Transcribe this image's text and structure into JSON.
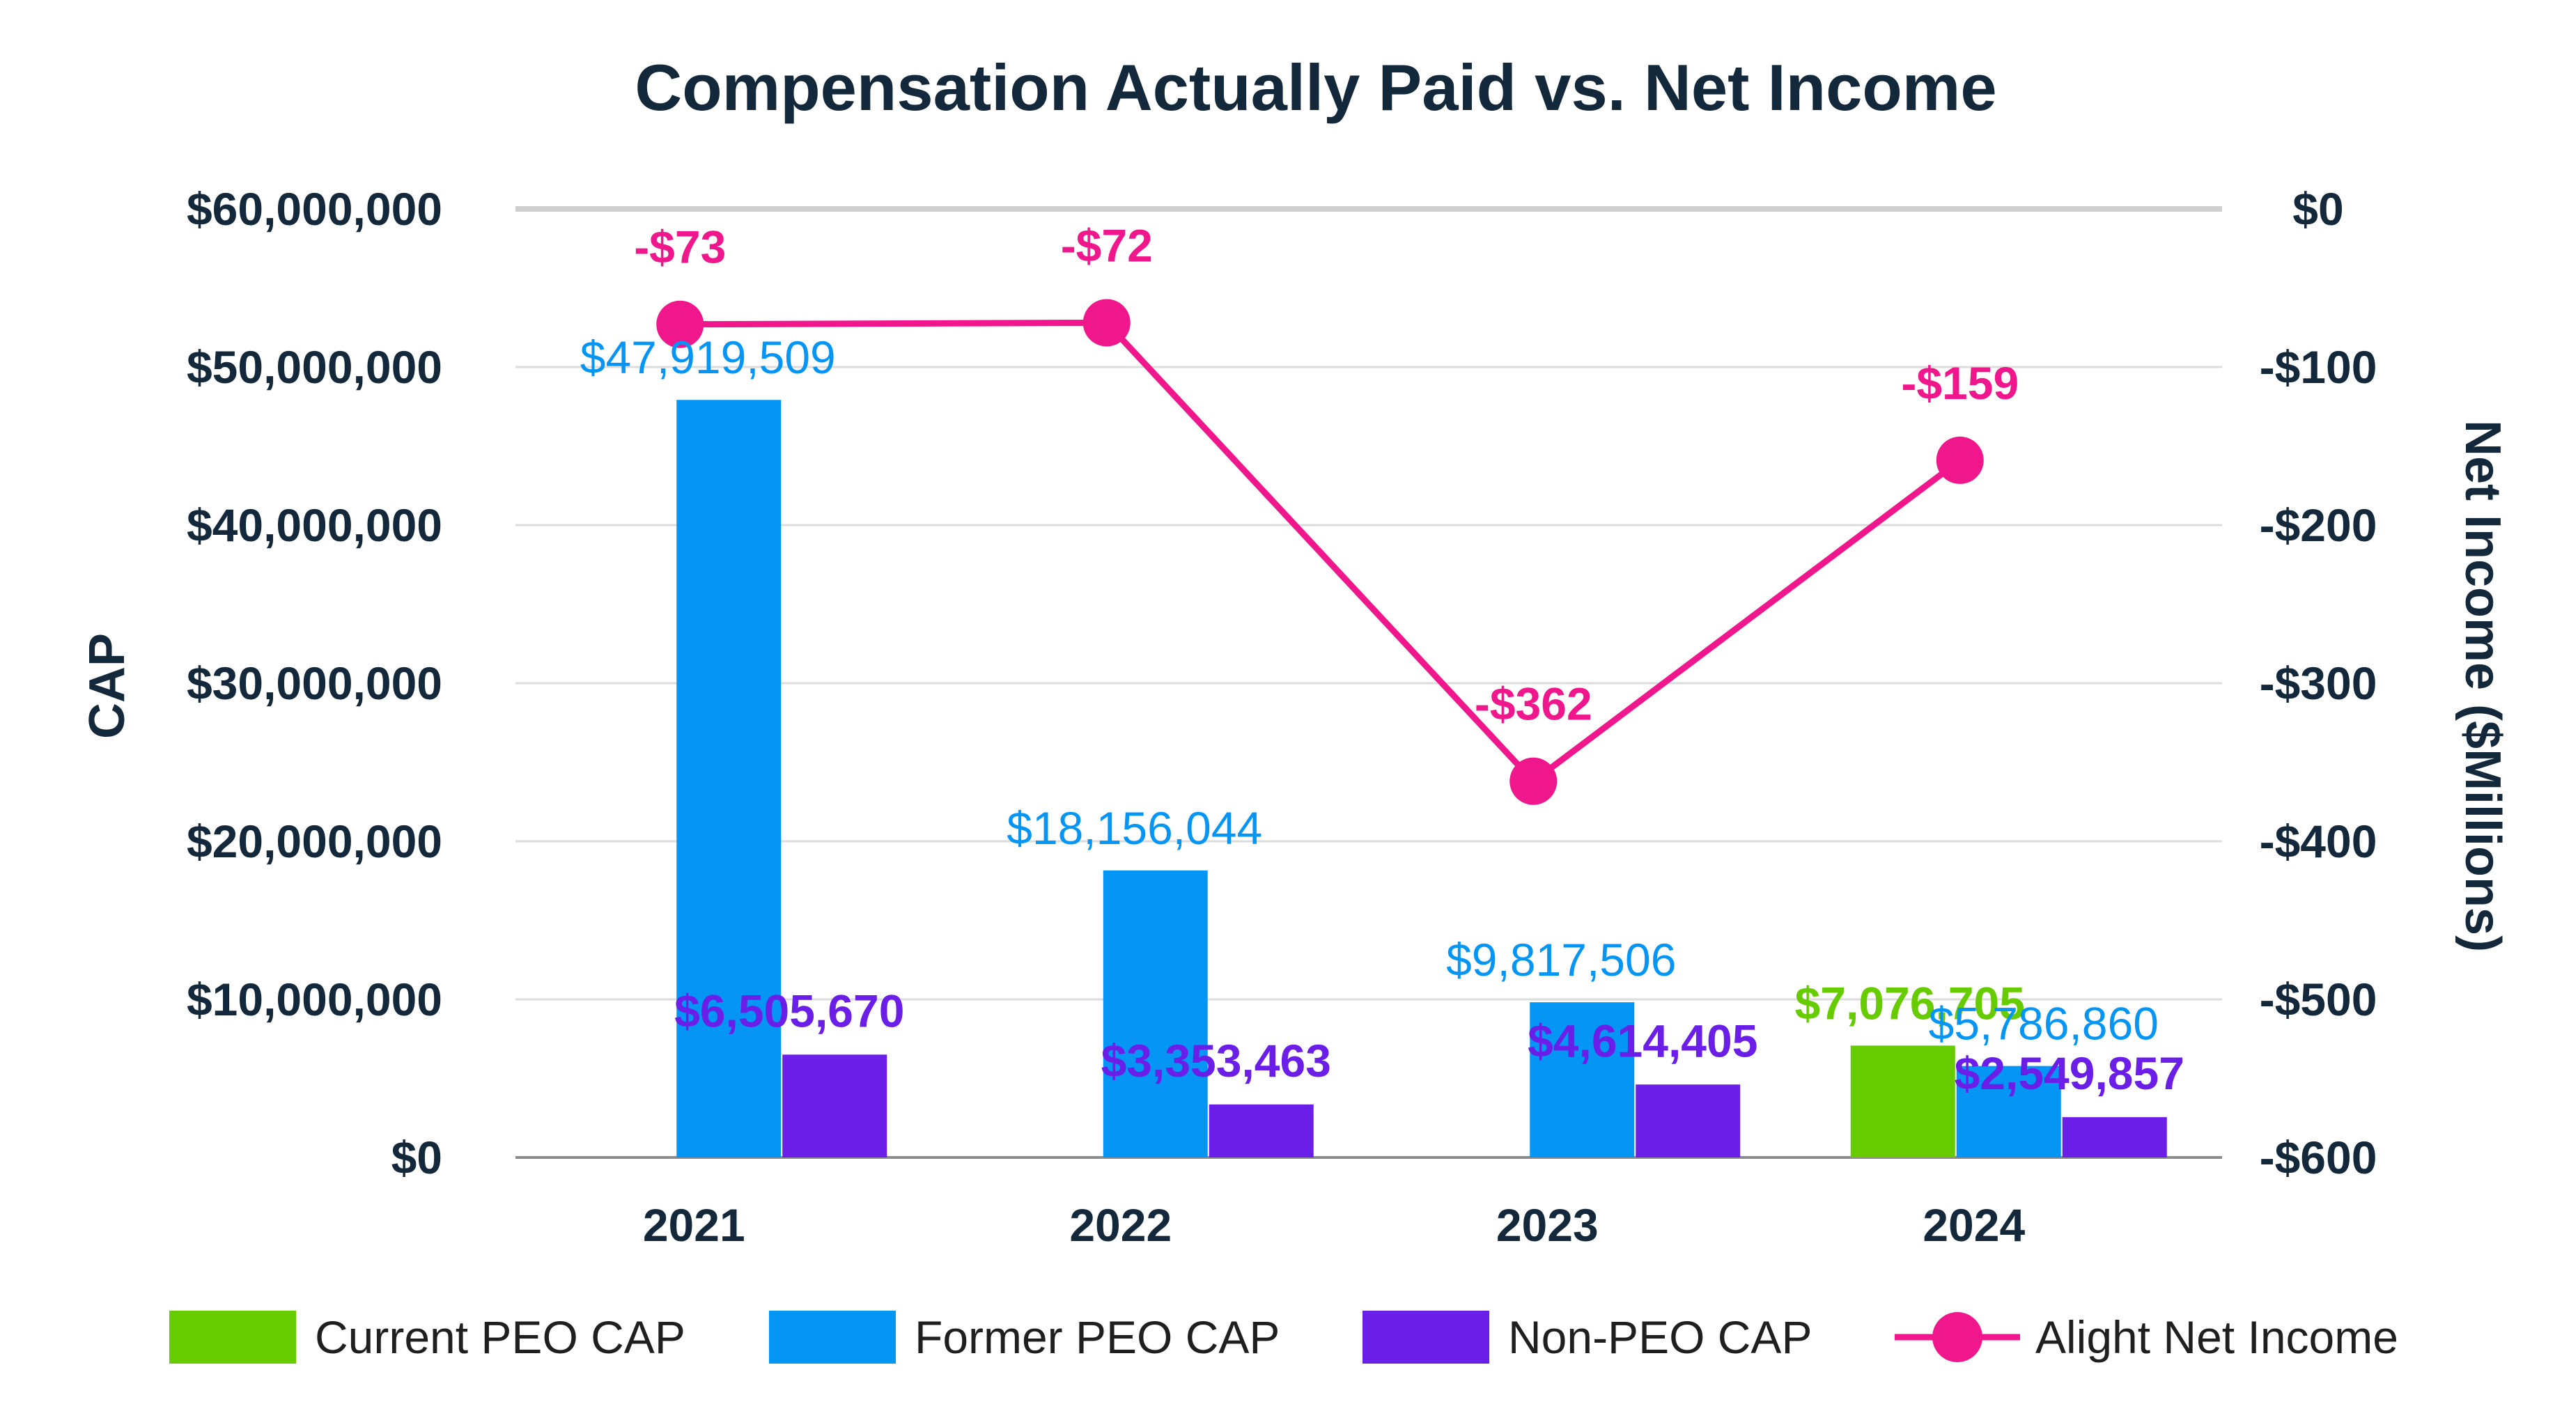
{
  "chart_data": {
    "type": "bar+line",
    "title": "Compensation Actually Paid vs. Net Income",
    "categories": [
      "2021",
      "2022",
      "2023",
      "2024"
    ],
    "ylabel_left": "CAP",
    "ylabel_right": "Net Income ($Millions)",
    "ylim_left": [
      0,
      60000000
    ],
    "ylim_right": [
      -600,
      0
    ],
    "left_ticks": [
      {
        "value": 0,
        "label": "$0"
      },
      {
        "value": 10000000,
        "label": "$10,000,000"
      },
      {
        "value": 20000000,
        "label": "$20,000,000"
      },
      {
        "value": 30000000,
        "label": "$30,000,000"
      },
      {
        "value": 40000000,
        "label": "$40,000,000"
      },
      {
        "value": 50000000,
        "label": "$50,000,000"
      },
      {
        "value": 60000000,
        "label": "$60,000,000"
      }
    ],
    "right_ticks": [
      {
        "value": 0,
        "label": "$0"
      },
      {
        "value": -100,
        "label": "-$100"
      },
      {
        "value": -200,
        "label": "-$200"
      },
      {
        "value": -300,
        "label": "-$300"
      },
      {
        "value": -400,
        "label": "-$400"
      },
      {
        "value": -500,
        "label": "-$500"
      },
      {
        "value": -600,
        "label": "-$600"
      }
    ],
    "series": [
      {
        "name": "Current PEO CAP",
        "type": "bar",
        "slot": 0,
        "color": "#66cc00",
        "values": [
          null,
          null,
          null,
          7076705
        ],
        "labels": [
          "",
          "",
          "",
          "$7,076,705"
        ]
      },
      {
        "name": "Former PEO CAP",
        "type": "bar",
        "slot": 1,
        "color": "#0596f5",
        "values": [
          47919509,
          18156044,
          9817506,
          5786860
        ],
        "labels": [
          "$47,919,509",
          "$18,156,044",
          "$9,817,506",
          "$5,786,860"
        ]
      },
      {
        "name": "Non-PEO CAP",
        "type": "bar",
        "slot": 2,
        "color": "#6a1ee8",
        "values": [
          6505670,
          3353463,
          4614405,
          2549857
        ],
        "labels": [
          "$6,505,670",
          "$3,353,463",
          "$4,614,405",
          "$2,549,857"
        ]
      },
      {
        "name": "Alight Net Income",
        "type": "line",
        "axis": "right",
        "color": "#f0168c",
        "values": [
          -73,
          -72,
          -362,
          -159
        ],
        "labels": [
          "-$73",
          "-$72",
          "-$362",
          "-$159"
        ]
      }
    ],
    "legend_position": "bottom",
    "grid": true
  }
}
